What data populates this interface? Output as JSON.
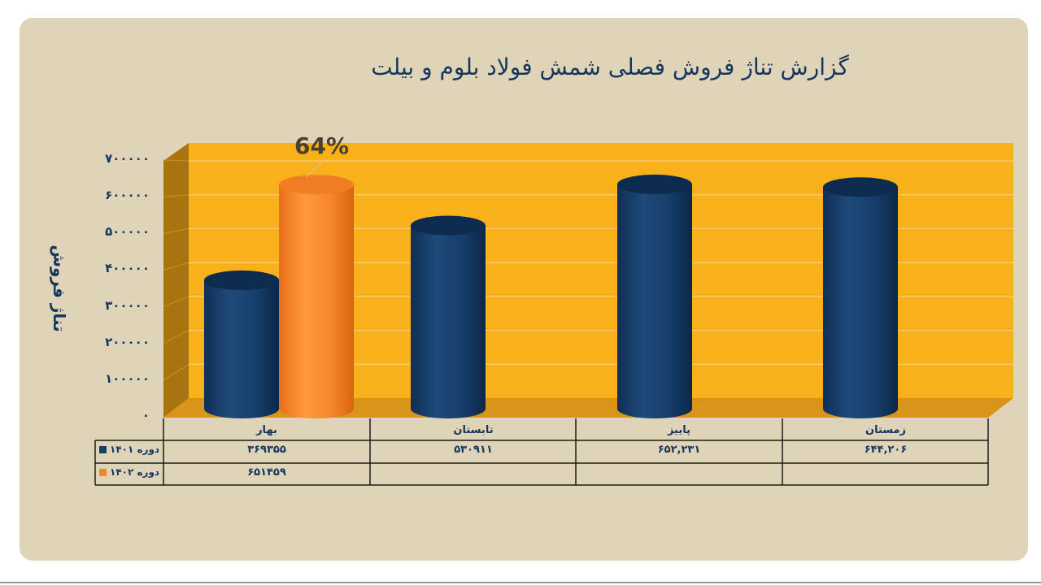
{
  "title": "گزارش تناژ فروش فصلی شمش فولاد بلوم و بیلت",
  "chart_data": {
    "type": "bar",
    "ylabel": "تناژ فروش",
    "ylim": [
      0,
      700000
    ],
    "y_ticks": [
      "۷۰۰۰۰۰",
      "۶۰۰۰۰۰",
      "۵۰۰۰۰۰",
      "۴۰۰۰۰۰",
      "۳۰۰۰۰۰",
      "۲۰۰۰۰۰",
      "۱۰۰۰۰۰",
      "۰"
    ],
    "categories": [
      "بهار",
      "تابستان",
      "پاییز",
      "زمستان"
    ],
    "series": [
      {
        "name": "دوره ۱۴۰۱",
        "color": "#153e6a",
        "values": [
          369355,
          530911,
          652231,
          644206
        ],
        "table_labels": [
          "۳۶۹۳۵۵",
          "۵۳۰۹۱۱",
          "۶۵۲,۲۳۱",
          "۶۴۴,۲۰۶"
        ]
      },
      {
        "name": "دوره ۱۴۰۲",
        "color": "#f5862a",
        "values": [
          651459,
          null,
          null,
          null
        ],
        "table_labels": [
          "۶۵۱۴۵۹",
          "",
          "",
          ""
        ]
      }
    ],
    "annotation": "64%",
    "grid": true,
    "plot_background": "#f8b11b",
    "legend": "data-table"
  }
}
